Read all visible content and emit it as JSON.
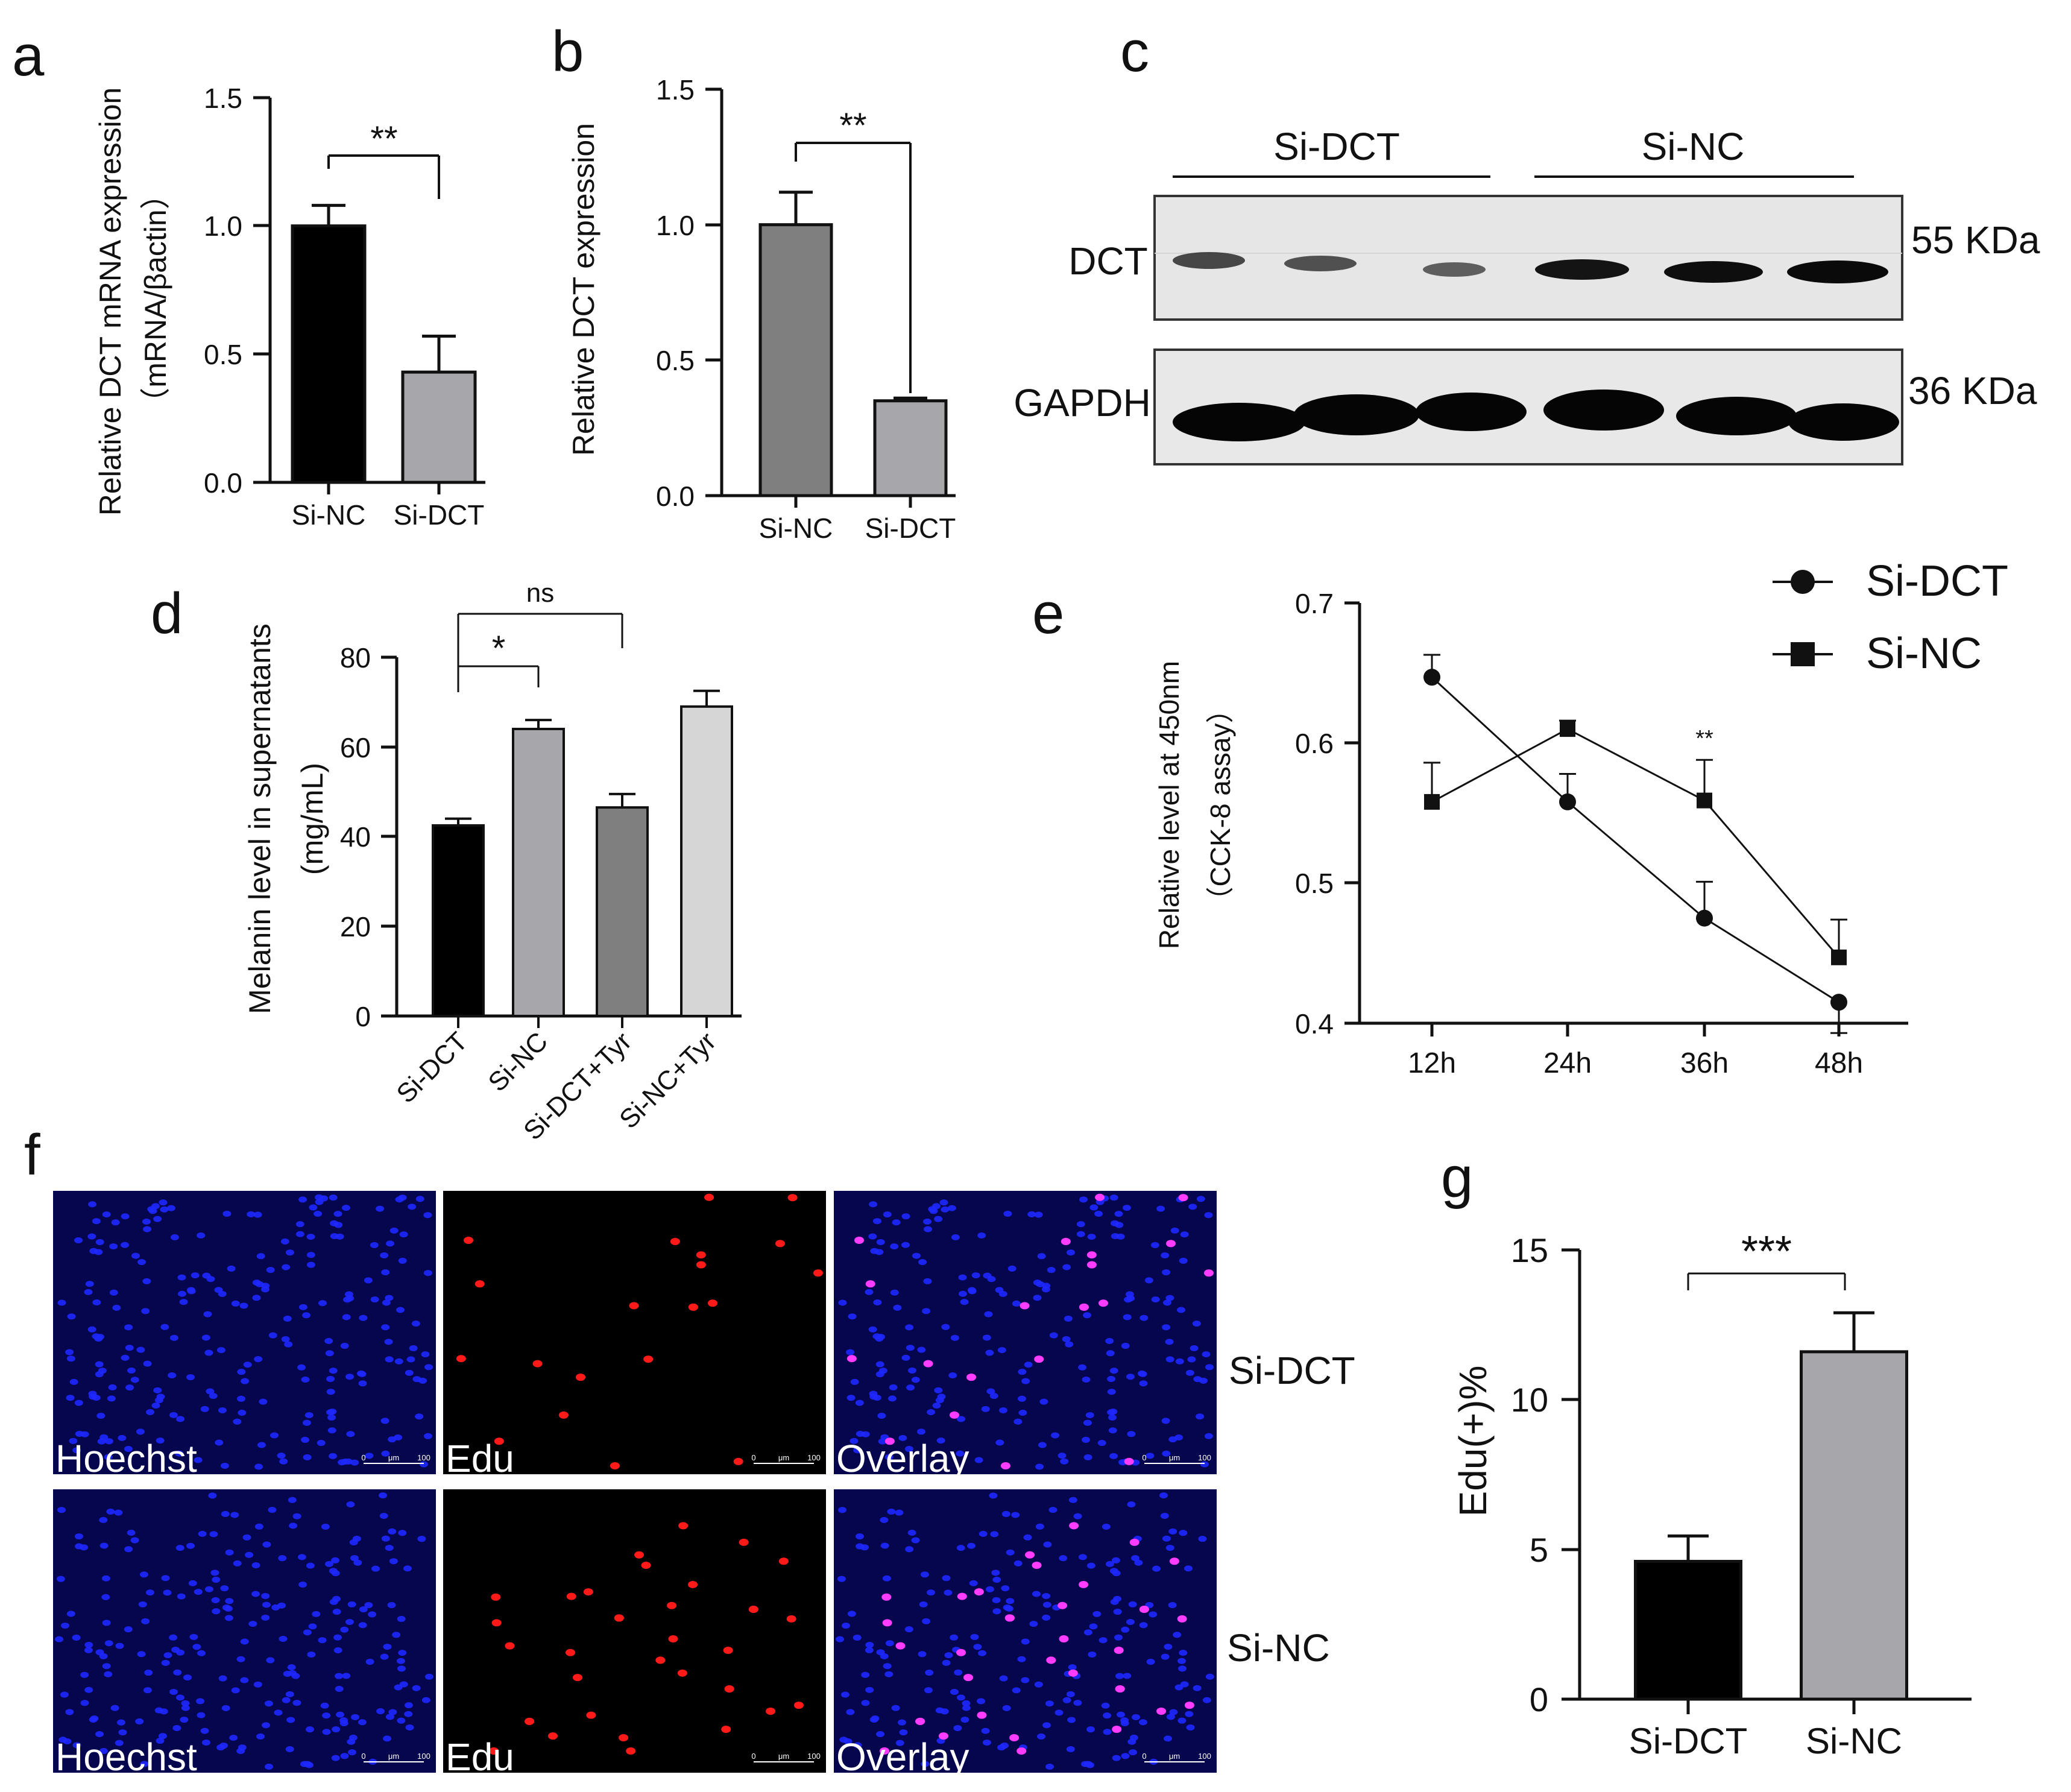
{
  "panels": {
    "a": {
      "letter": "a",
      "ylabel": "Relative DCT mRNA expression",
      "ylabel2": "（mRNA/βactin）",
      "sig": "**",
      "ticks": [
        "0.0",
        "0.5",
        "1.0",
        "1.5"
      ]
    },
    "b": {
      "letter": "b",
      "ylabel": "Relative DCT expression",
      "sig": "**",
      "ticks": [
        "0.0",
        "0.5",
        "1.0",
        "1.5"
      ]
    },
    "c": {
      "letter": "c",
      "group1": "Si-DCT",
      "group2": "Si-NC",
      "row1": "DCT",
      "row2": "GAPDH",
      "size1": "55 KDa",
      "size2": "36 KDa"
    },
    "d": {
      "letter": "d",
      "ylabel": "Melanin level in supernatants",
      "ylabel2": "(mg/mL)",
      "sig1": "*",
      "sig2": "ns",
      "ticks": [
        "0",
        "20",
        "40",
        "60",
        "80"
      ]
    },
    "e": {
      "letter": "e",
      "ylabel": "Relative level at 450nm",
      "ylabel2": "（CCK-8 assay）",
      "sig": "**",
      "ticks": [
        "0.4",
        "0.5",
        "0.6",
        "0.7"
      ]
    },
    "f": {
      "letter": "f",
      "col1": "Hoechst",
      "col2": "Edu",
      "col3": "Overlay",
      "row1": "Si-DCT",
      "row2": "Si-NC",
      "scale_0": "0",
      "scale_unit": "μm",
      "scale_max": "100"
    },
    "g": {
      "letter": "g",
      "ylabel": "Edu(+)%",
      "sig": "***",
      "ticks": [
        "0",
        "5",
        "10",
        "15"
      ]
    }
  },
  "colors": {
    "black_bar": "#000000",
    "gray_bar": "#a7a7ab",
    "dark_gray_bar": "#7f7f7f",
    "light_gray_bar": "#d6d6d6",
    "hoechst_bg": "#06064e",
    "hoechst_nuclei": "#1e28ff",
    "edu_nuclei": "#ff1a1a",
    "overlay_nuclei": "#ff3cff"
  },
  "chart_data": [
    {
      "type": "bar",
      "panel": "a",
      "categories": [
        "Si-NC",
        "Si-DCT"
      ],
      "values": [
        1.0,
        0.43
      ],
      "errors": [
        0.08,
        0.14
      ],
      "ylim": [
        0,
        1.5
      ]
    },
    {
      "type": "bar",
      "panel": "b",
      "categories": [
        "Si-NC",
        "Si-DCT"
      ],
      "values": [
        1.0,
        0.35
      ],
      "errors": [
        0.12,
        0.01
      ],
      "ylim": [
        0,
        1.5
      ]
    },
    {
      "type": "bar",
      "panel": "d",
      "categories": [
        "Si-DCT",
        "Si-NC",
        "Si-DCT+Tyr",
        "Si-NC+Tyr"
      ],
      "values": [
        42.5,
        64,
        46.5,
        69
      ],
      "errors": [
        1.5,
        2,
        3,
        3.5
      ],
      "ylim": [
        0,
        80
      ]
    },
    {
      "type": "line",
      "panel": "e",
      "x": [
        "12h",
        "24h",
        "36h",
        "48h"
      ],
      "series": [
        {
          "name": "Si-DCT",
          "values": [
            0.647,
            0.558,
            0.475,
            0.415
          ],
          "errors": [
            0.016,
            0.02,
            0.026,
            0.022
          ]
        },
        {
          "name": "Si-NC",
          "values": [
            0.558,
            0.61,
            0.559,
            0.447
          ],
          "errors": [
            0.028,
            0.006,
            0.029,
            0.027
          ]
        }
      ],
      "ylim": [
        0.4,
        0.7
      ],
      "legend": "top-right"
    },
    {
      "type": "bar",
      "panel": "g",
      "categories": [
        "Si-DCT",
        "Si-NC"
      ],
      "values": [
        4.6,
        11.6
      ],
      "errors": [
        0.85,
        1.3
      ],
      "ylim": [
        0,
        15
      ]
    }
  ]
}
